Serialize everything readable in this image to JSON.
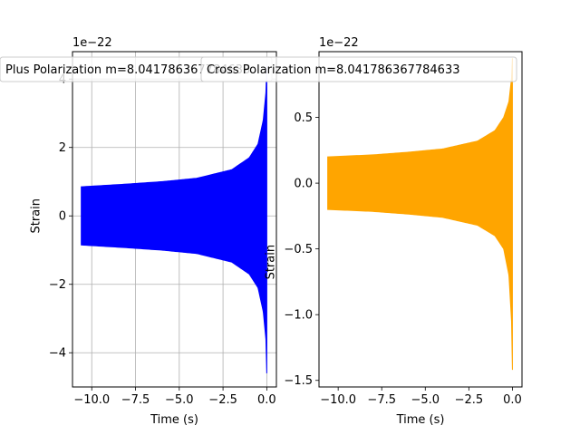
{
  "chart_data": [
    {
      "type": "line",
      "title": "",
      "xlabel": "Time (s)",
      "ylabel": "Strain",
      "offset_text": "1e−22",
      "scale_exponent": -22,
      "xlim": [
        -11.1,
        0.55
      ],
      "ylim": [
        -5.0,
        4.8
      ],
      "xticks": [
        -10.0,
        -7.5,
        -5.0,
        -2.5,
        0.0
      ],
      "xtick_labels": [
        "−10.0",
        "−7.5",
        "−5.0",
        "−2.5",
        "0.0"
      ],
      "yticks": [
        -4,
        -2,
        0,
        2,
        4
      ],
      "ytick_labels": [
        "−4",
        "−2",
        "0",
        "2",
        "4"
      ],
      "grid": true,
      "legend_position": "top",
      "series": [
        {
          "name": "Plus Polarization m=8.041786367784633",
          "color": "#0000ff",
          "envelope_time": [
            -10.6,
            -8,
            -6,
            -4,
            -2,
            -1,
            -0.5,
            -0.2,
            -0.05,
            0
          ],
          "envelope_upper": [
            0.85,
            0.93,
            1.0,
            1.1,
            1.35,
            1.7,
            2.1,
            2.8,
            3.6,
            4.4
          ],
          "envelope_lower": [
            -0.85,
            -0.93,
            -1.0,
            -1.1,
            -1.35,
            -1.7,
            -2.1,
            -2.8,
            -3.6,
            -4.6
          ]
        }
      ]
    },
    {
      "type": "line",
      "title": "",
      "xlabel": "Time (s)",
      "ylabel": "Strain",
      "offset_text": "1e−22",
      "scale_exponent": -22,
      "xlim": [
        -11.1,
        0.55
      ],
      "ylim": [
        -1.55,
        1.0
      ],
      "xticks": [
        -10.0,
        -7.5,
        -5.0,
        -2.5,
        0.0
      ],
      "xtick_labels": [
        "−10.0",
        "−7.5",
        "−5.0",
        "−2.5",
        "0.0"
      ],
      "yticks": [
        -1.5,
        -1.0,
        -0.5,
        0.0,
        0.5
      ],
      "ytick_labels": [
        "−1.5",
        "−1.0",
        "−0.5",
        "0.0",
        "0.5"
      ],
      "grid": false,
      "legend_position": "top",
      "series": [
        {
          "name": "Cross Polarization m=8.041786367784633",
          "color": "#ffa500",
          "envelope_time": [
            -10.6,
            -8,
            -6,
            -4,
            -2,
            -1,
            -0.5,
            -0.2,
            -0.05,
            0
          ],
          "envelope_upper": [
            0.2,
            0.215,
            0.235,
            0.26,
            0.32,
            0.4,
            0.5,
            0.62,
            0.8,
            0.95
          ],
          "envelope_lower": [
            -0.2,
            -0.215,
            -0.235,
            -0.26,
            -0.32,
            -0.4,
            -0.5,
            -0.7,
            -1.05,
            -1.42
          ]
        }
      ]
    }
  ]
}
